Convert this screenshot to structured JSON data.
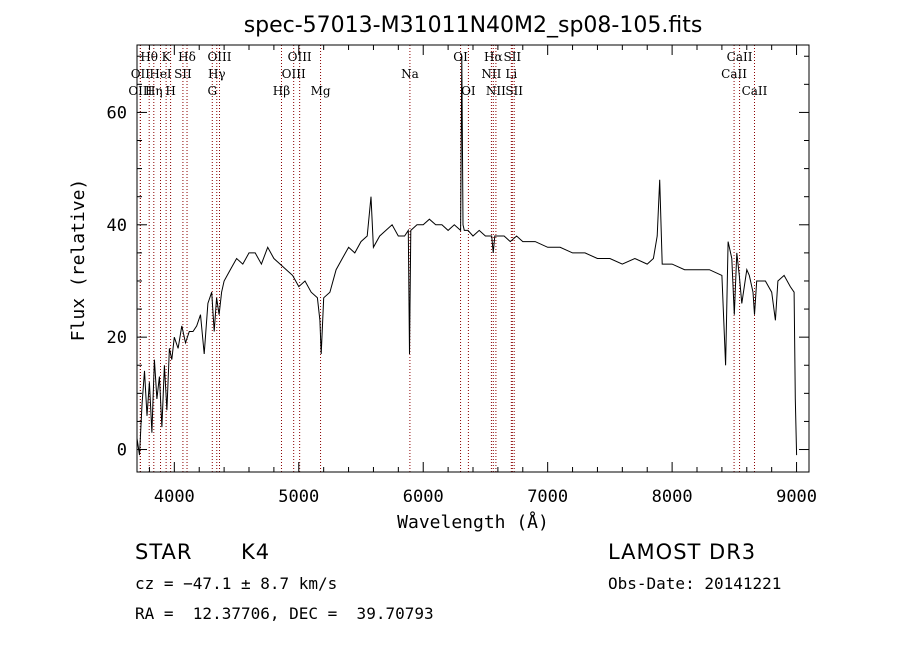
{
  "chart_data": {
    "type": "line",
    "title": "spec-57013-M31011N40M2_sp08-105.fits",
    "xlabel": "Wavelength (Å)",
    "ylabel": "Flux (relative)",
    "xlim": [
      3700,
      9100
    ],
    "ylim": [
      -4,
      72
    ],
    "xticks": [
      4000,
      5000,
      6000,
      7000,
      8000,
      9000
    ],
    "yticks": [
      0,
      20,
      40,
      60
    ],
    "spectrum": {
      "name": "flux",
      "x": [
        3700,
        3720,
        3740,
        3760,
        3780,
        3800,
        3820,
        3840,
        3860,
        3880,
        3900,
        3920,
        3940,
        3960,
        3980,
        4000,
        4030,
        4060,
        4090,
        4120,
        4150,
        4180,
        4210,
        4240,
        4270,
        4300,
        4320,
        4340,
        4360,
        4380,
        4400,
        4450,
        4500,
        4550,
        4600,
        4650,
        4700,
        4750,
        4800,
        4850,
        4900,
        4950,
        5000,
        5050,
        5100,
        5150,
        5170,
        5180,
        5200,
        5250,
        5300,
        5350,
        5400,
        5450,
        5500,
        5550,
        5580,
        5600,
        5650,
        5700,
        5750,
        5800,
        5850,
        5880,
        5890,
        5900,
        5950,
        6000,
        6050,
        6100,
        6150,
        6200,
        6250,
        6300,
        6310,
        6320,
        6330,
        6360,
        6400,
        6450,
        6500,
        6550,
        6562,
        6575,
        6600,
        6650,
        6700,
        6750,
        6800,
        6900,
        7000,
        7100,
        7200,
        7300,
        7400,
        7500,
        7600,
        7700,
        7800,
        7850,
        7880,
        7900,
        7920,
        7950,
        8000,
        8100,
        8200,
        8300,
        8400,
        8430,
        8450,
        8480,
        8500,
        8520,
        8540,
        8560,
        8600,
        8620,
        8650,
        8662,
        8680,
        8700,
        8750,
        8800,
        8830,
        8850,
        8900,
        8950,
        8980,
        8990,
        9000
      ],
      "values": [
        2,
        -1,
        8,
        14,
        6,
        12,
        3,
        16,
        9,
        13,
        4,
        15,
        7,
        18,
        16,
        20,
        18,
        22,
        19,
        21,
        21,
        22,
        24,
        17,
        26,
        28,
        21,
        27,
        24,
        28,
        30,
        32,
        34,
        33,
        35,
        35,
        33,
        36,
        34,
        33,
        32,
        31,
        29,
        30,
        28,
        27,
        23,
        17,
        27,
        28,
        32,
        34,
        36,
        35,
        37,
        38,
        45,
        36,
        38,
        39,
        40,
        38,
        38,
        39,
        17,
        39,
        40,
        40,
        41,
        40,
        40,
        39,
        40,
        39,
        70,
        40,
        39,
        39,
        38,
        39,
        38,
        38,
        35,
        38,
        38,
        38,
        37,
        38,
        37,
        37,
        36,
        36,
        35,
        35,
        34,
        34,
        33,
        34,
        33,
        34,
        38,
        48,
        33,
        33,
        33,
        32,
        32,
        32,
        31,
        15,
        37,
        34,
        24,
        35,
        31,
        26,
        32,
        31,
        28,
        24,
        30,
        30,
        30,
        28,
        23,
        30,
        31,
        29,
        28,
        9,
        -1
      ]
    },
    "spectral_lines": [
      {
        "label": "Hθ",
        "x": 3798,
        "row": 1
      },
      {
        "label": "OII",
        "x": 3727,
        "row": 2
      },
      {
        "label": "OIII",
        "x": 3727,
        "row": 3
      },
      {
        "label": "K",
        "x": 3934,
        "row": 1
      },
      {
        "label": "HeI",
        "x": 3889,
        "row": 2
      },
      {
        "label": "Hη",
        "x": 3835,
        "row": 3
      },
      {
        "label": "SII",
        "x": 4069,
        "row": 2
      },
      {
        "label": "H",
        "x": 3970,
        "row": 3
      },
      {
        "label": "Hδ",
        "x": 4102,
        "row": 1
      },
      {
        "label": "OIII",
        "x": 4363,
        "row": 1
      },
      {
        "label": "Hγ",
        "x": 4341,
        "row": 2
      },
      {
        "label": "G",
        "x": 4305,
        "row": 3
      },
      {
        "label": "Hβ",
        "x": 4861,
        "row": 3
      },
      {
        "label": "OIII",
        "x": 5007,
        "row": 1
      },
      {
        "label": "OIII",
        "x": 4959,
        "row": 2
      },
      {
        "label": "Mg",
        "x": 5175,
        "row": 3
      },
      {
        "label": "Na",
        "x": 5893,
        "row": 2
      },
      {
        "label": "OI",
        "x": 6300,
        "row": 1
      },
      {
        "label": "OI",
        "x": 6363,
        "row": 3
      },
      {
        "label": "Hα",
        "x": 6563,
        "row": 1
      },
      {
        "label": "SII",
        "x": 6716,
        "row": 1
      },
      {
        "label": "NII",
        "x": 6548,
        "row": 2
      },
      {
        "label": "Li",
        "x": 6708,
        "row": 2
      },
      {
        "label": "NII",
        "x": 6584,
        "row": 3
      },
      {
        "label": "SII",
        "x": 6731,
        "row": 3
      },
      {
        "label": "CaII",
        "x": 8542,
        "row": 1
      },
      {
        "label": "CaII",
        "x": 8498,
        "row": 2
      },
      {
        "label": "CaII",
        "x": 8662,
        "row": 3
      }
    ]
  },
  "footer": {
    "class_label": "STAR",
    "subclass_label": "K4",
    "survey": "LAMOST DR3",
    "cz": "cz = −47.1 ± 8.7 km/s",
    "obs_date": "Obs-Date: 20141221",
    "coords": "RA =  12.37706, DEC =  39.70793"
  }
}
